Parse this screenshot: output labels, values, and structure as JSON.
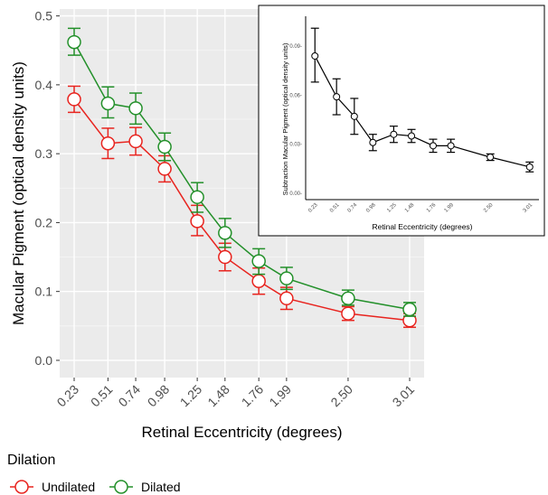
{
  "chart_data": [
    {
      "type": "line",
      "xlabel": "Retinal Eccentricity (degrees)",
      "ylabel": "Macular Pigment (optical density units)",
      "x": [
        0.23,
        0.51,
        0.74,
        0.98,
        1.25,
        1.48,
        1.76,
        1.99,
        2.5,
        3.01
      ],
      "x_tick_labels": [
        "0.23",
        "0.51",
        "0.74",
        "0.98",
        "1.25",
        "1.48",
        "1.76",
        "1.99",
        "2.50",
        "3.01"
      ],
      "ylim": [
        -0.025,
        0.51
      ],
      "y_ticks": [
        0.0,
        0.1,
        0.2,
        0.3,
        0.4,
        0.5
      ],
      "y_tick_labels": [
        "0.0",
        "0.1",
        "0.2",
        "0.3",
        "0.4",
        "0.5"
      ],
      "grid": true,
      "legend": {
        "title": "Dilation",
        "position": "bottom"
      },
      "series": [
        {
          "name": "Undilated",
          "color": "#e8241f",
          "values": [
            0.379,
            0.315,
            0.318,
            0.278,
            0.202,
            0.15,
            0.115,
            0.09,
            0.068,
            0.058
          ],
          "err_low": [
            0.36,
            0.293,
            0.298,
            0.259,
            0.181,
            0.13,
            0.096,
            0.074,
            0.058,
            0.048
          ],
          "err_high": [
            0.398,
            0.337,
            0.338,
            0.297,
            0.225,
            0.17,
            0.134,
            0.106,
            0.078,
            0.068
          ]
        },
        {
          "name": "Dilated",
          "color": "#23902a",
          "values": [
            0.462,
            0.373,
            0.366,
            0.31,
            0.237,
            0.185,
            0.144,
            0.119,
            0.09,
            0.074
          ],
          "err_low": [
            0.443,
            0.352,
            0.343,
            0.29,
            0.215,
            0.164,
            0.125,
            0.103,
            0.08,
            0.064
          ],
          "err_high": [
            0.482,
            0.397,
            0.388,
            0.33,
            0.258,
            0.206,
            0.162,
            0.135,
            0.102,
            0.084
          ]
        }
      ]
    },
    {
      "type": "line",
      "xlabel": "Retinal Eccentricity (degrees)",
      "ylabel": "Subtraction Macular Pigment (optical density units)",
      "x": [
        0.23,
        0.51,
        0.74,
        0.98,
        1.25,
        1.48,
        1.76,
        1.99,
        2.5,
        3.01
      ],
      "x_tick_labels": [
        "0.23",
        "0.51",
        "0.74",
        "0.98",
        "1.25",
        "1.48",
        "1.76",
        "1.99",
        "2.50",
        "3.01"
      ],
      "ylim": [
        -0.004,
        0.105
      ],
      "y_ticks": [
        0.0,
        0.03,
        0.06,
        0.09
      ],
      "y_tick_labels": [
        "0.00-",
        "0.03-",
        "0.06-",
        "0.09-"
      ],
      "grid": false,
      "series": [
        {
          "color": "#000000",
          "values": [
            0.084,
            0.059,
            0.047,
            0.031,
            0.036,
            0.035,
            0.029,
            0.029,
            0.022,
            0.016
          ],
          "err_low": [
            0.068,
            0.048,
            0.036,
            0.026,
            0.031,
            0.031,
            0.025,
            0.025,
            0.02,
            0.013
          ],
          "err_high": [
            0.101,
            0.07,
            0.058,
            0.036,
            0.041,
            0.039,
            0.033,
            0.033,
            0.024,
            0.019
          ]
        }
      ]
    }
  ]
}
